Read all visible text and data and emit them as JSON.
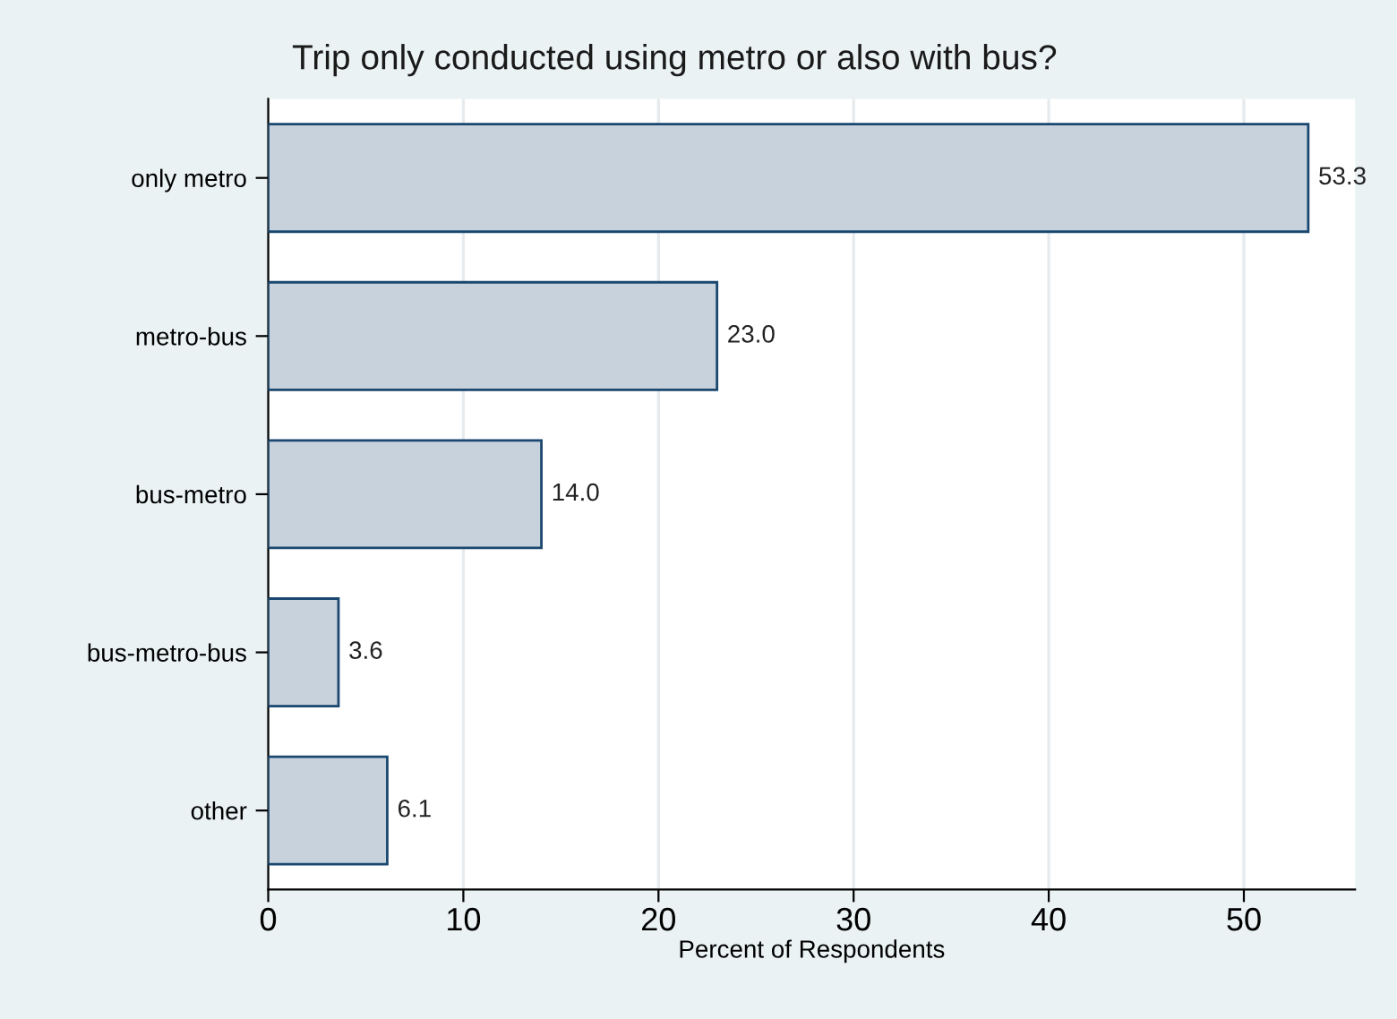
{
  "chart_data": {
    "type": "bar",
    "orientation": "horizontal",
    "title": "Trip only conducted using metro or also with bus?",
    "xlabel": "Percent of Respondents",
    "categories": [
      "only metro",
      "metro-bus",
      "bus-metro",
      "bus-metro-bus",
      "other"
    ],
    "values": [
      53.3,
      23.0,
      14.0,
      3.6,
      6.1
    ],
    "value_labels": [
      "53.3",
      "23.0",
      "14.0",
      "3.6",
      "6.1"
    ],
    "color": "#c8d2dc",
    "xlim": [
      0,
      55.7
    ],
    "xticks": [
      0,
      10,
      20,
      30,
      40,
      50
    ],
    "grid": "x",
    "legend": false
  }
}
